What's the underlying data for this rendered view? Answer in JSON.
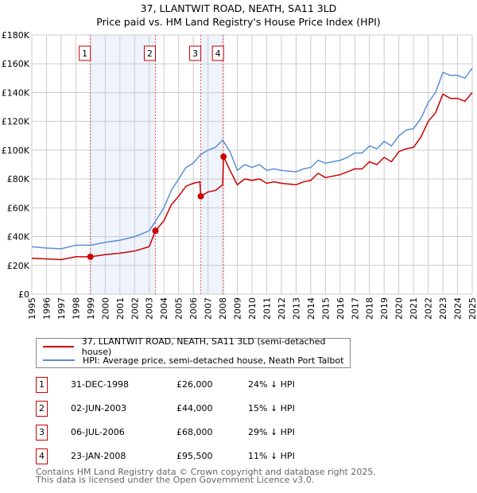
{
  "chart_data": {
    "type": "line",
    "title": "37, LLANTWIT ROAD, NEATH, SA11 3LD",
    "subtitle": "Price paid vs. HM Land Registry's House Price Index (HPI)",
    "xlim": [
      1995,
      2025
    ],
    "ylim": [
      0,
      180000
    ],
    "yticks": [
      {
        "v": 0,
        "label": "£0"
      },
      {
        "v": 20000,
        "label": "£20K"
      },
      {
        "v": 40000,
        "label": "£40K"
      },
      {
        "v": 60000,
        "label": "£60K"
      },
      {
        "v": 80000,
        "label": "£80K"
      },
      {
        "v": 100000,
        "label": "£100K"
      },
      {
        "v": 120000,
        "label": "£120K"
      },
      {
        "v": 140000,
        "label": "£140K"
      },
      {
        "v": 160000,
        "label": "£160K"
      },
      {
        "v": 180000,
        "label": "£180K"
      }
    ],
    "xticks": [
      "1995",
      "1996",
      "1997",
      "1998",
      "1999",
      "2000",
      "2001",
      "2002",
      "2003",
      "2004",
      "2005",
      "2006",
      "2007",
      "2008",
      "2009",
      "2010",
      "2011",
      "2012",
      "2013",
      "2014",
      "2015",
      "2016",
      "2017",
      "2018",
      "2019",
      "2020",
      "2021",
      "2022",
      "2023",
      "2024",
      "2025"
    ],
    "grid": true,
    "series": [
      {
        "name": "37, LLANTWIT ROAD, NEATH, SA11 3LD (semi-detached house)",
        "color": "#cc0000",
        "x": [
          1995,
          1996,
          1997,
          1998,
          1999,
          2000,
          2001,
          2002,
          2003,
          2003.42,
          2004,
          2004.5,
          2005,
          2005.5,
          2006,
          2006.45,
          2006.51,
          2007,
          2007.5,
          2008,
          2008.06,
          2008.5,
          2009,
          2009.5,
          2010,
          2010.5,
          2011,
          2011.5,
          2012,
          2013,
          2013.5,
          2014,
          2014.5,
          2015,
          2016,
          2016.5,
          2017,
          2017.5,
          2018,
          2018.5,
          2019,
          2019.5,
          2020,
          2020.5,
          2021,
          2021.5,
          2022,
          2022.5,
          2023,
          2023.5,
          2024,
          2024.5,
          2025
        ],
        "y": [
          25,
          24.5,
          24,
          26,
          26,
          27.5,
          28.5,
          30,
          33,
          44,
          51,
          62,
          68,
          75,
          77,
          78,
          68,
          71,
          72,
          76,
          95.5,
          86,
          76,
          80,
          79,
          80,
          77,
          78,
          77,
          76,
          78,
          79,
          84,
          81,
          83,
          85,
          87,
          87,
          92,
          90,
          95,
          92,
          99,
          101,
          102,
          109,
          120,
          126,
          139,
          136,
          136,
          134,
          140
        ]
      },
      {
        "name": "HPI: Average price, semi-detached house, Neath Port Talbot",
        "color": "#5b8fd6",
        "x": [
          1995,
          1996,
          1997,
          1998,
          1999,
          2000,
          2001,
          2002,
          2003,
          2003.5,
          2004,
          2004.5,
          2005,
          2005.5,
          2006,
          2006.5,
          2007,
          2007.5,
          2008,
          2008.5,
          2009,
          2009.5,
          2010,
          2010.5,
          2011,
          2011.5,
          2012,
          2013,
          2013.5,
          2014,
          2014.5,
          2015,
          2016,
          2016.5,
          2017,
          2017.5,
          2018,
          2018.5,
          2019,
          2019.5,
          2020,
          2020.5,
          2021,
          2021.5,
          2022,
          2022.5,
          2023,
          2023.5,
          2024,
          2024.5,
          2025
        ],
        "y": [
          33,
          32,
          31.5,
          34,
          34,
          36,
          37.5,
          40,
          44,
          52,
          60,
          72,
          80,
          88,
          91,
          97,
          100,
          102,
          107,
          99,
          86,
          90,
          88,
          90,
          86,
          87,
          86,
          85,
          87,
          88,
          93,
          91,
          93,
          95,
          98,
          98,
          103,
          101,
          106,
          103,
          110,
          114,
          115,
          122,
          133,
          140,
          154,
          152,
          152,
          150,
          157
        ]
      }
    ],
    "y_units": "thousands GBP",
    "sales": [
      {
        "id": "1",
        "date": "31-DEC-1998",
        "x": 1998.99,
        "price": 26000,
        "price_label": "£26,000",
        "hpi": "24% ↓ HPI"
      },
      {
        "id": "2",
        "date": "02-JUN-2003",
        "x": 2003.42,
        "price": 44000,
        "price_label": "£44,000",
        "hpi": "15% ↓ HPI"
      },
      {
        "id": "3",
        "date": "06-JUL-2006",
        "x": 2006.51,
        "price": 68000,
        "price_label": "£68,000",
        "hpi": "29% ↓ HPI"
      },
      {
        "id": "4",
        "date": "23-JAN-2008",
        "x": 2008.06,
        "price": 95500,
        "price_label": "£95,500",
        "hpi": "11% ↓ HPI"
      }
    ],
    "shaded_ranges": [
      [
        "1",
        "2"
      ],
      [
        "3",
        "4"
      ]
    ],
    "legend_position": "below"
  },
  "footer": {
    "line1": "Contains HM Land Registry data © Crown copyright and database right 2025.",
    "line2": "This data is licensed under the Open Government Licence v3.0."
  }
}
